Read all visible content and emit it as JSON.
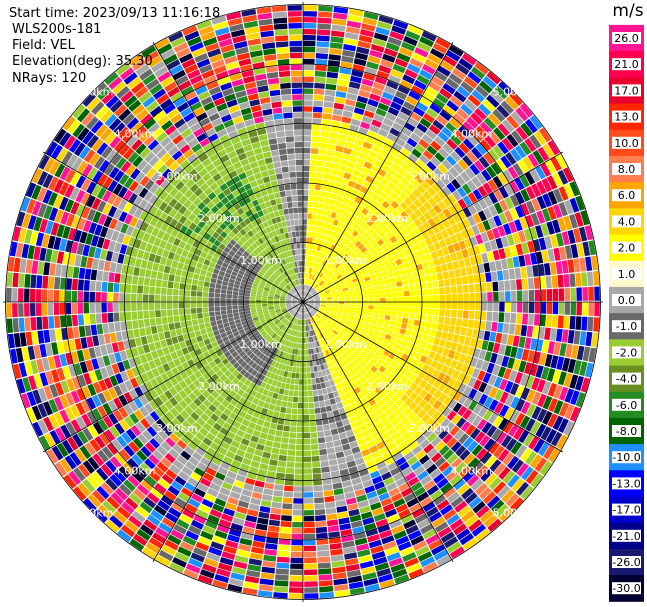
{
  "header": {
    "start_time": "Start time: 2023/09/13 11:16:18",
    "instrument": "WLS200s-181",
    "field": "Field: VEL",
    "elevation": "Elevation(deg): 35.30",
    "nrays": "NRays: 120"
  },
  "colorbar": {
    "unit": "m/s",
    "ticks": [
      "26.0",
      "21.0",
      "17.0",
      "13.0",
      "10.0",
      "8.0",
      "6.0",
      "4.0",
      "2.0",
      "1.0",
      "0.0",
      "-1.0",
      "-2.0",
      "-4.0",
      "-6.0",
      "-8.0",
      "-10.0",
      "-13.0",
      "-17.0",
      "-21.0",
      "-26.0",
      "-30.0"
    ],
    "colors": [
      "#ff1493",
      "#ff0050",
      "#e8002e",
      "#ff2600",
      "#ff4c1a",
      "#ff7e50",
      "#ffa500",
      "#ffd700",
      "#ffff00",
      "#fffacd",
      "#a9a9a9",
      "#696969",
      "#9acd32",
      "#6b8e23",
      "#228b22",
      "#006400",
      "#1e90ff",
      "#0000ff",
      "#0000cd",
      "#00008b",
      "#191970",
      "#000033"
    ]
  },
  "chart_data": {
    "type": "ppi",
    "title": "",
    "field": "VEL",
    "units": "m/s",
    "n_rays": 120,
    "elevation_deg": 35.3,
    "range_rings_km": [
      1.0,
      2.0,
      3.0,
      4.0,
      5.0
    ],
    "range_labels": [
      "1.00km",
      "2.00km",
      "3.00km",
      "4.00km",
      "5.00km"
    ],
    "range_max_km": 5.0,
    "vmin": -30,
    "vmax": 26
  }
}
